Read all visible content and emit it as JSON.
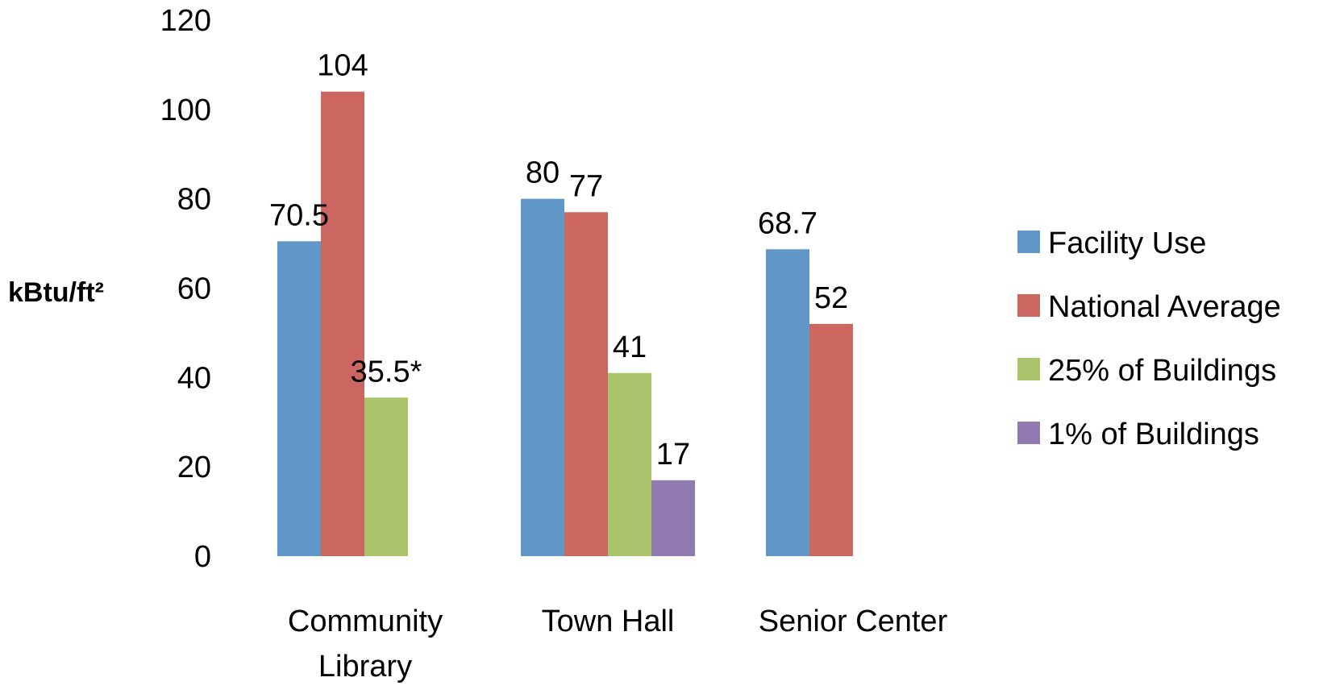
{
  "chart_data": {
    "type": "bar",
    "categories": [
      [
        "Community",
        "Library"
      ],
      [
        "Town Hall"
      ],
      [
        "Senior Center"
      ]
    ],
    "ylabel": "kBtu/ft²",
    "ylim": [
      0,
      120
    ],
    "yticks": [
      0,
      20,
      40,
      60,
      80,
      100,
      120
    ],
    "grid": false,
    "legend_position": "right",
    "series": [
      {
        "name": "Facility Use",
        "color": "#6096C8",
        "values": [
          70.5,
          80,
          68.7
        ],
        "labels": [
          "70.5",
          "80",
          "68.7"
        ]
      },
      {
        "name": "National Average",
        "color": "#CC6660",
        "values": [
          104,
          77,
          52
        ],
        "labels": [
          "104",
          "77",
          "52"
        ]
      },
      {
        "name": "25% of Buildings",
        "color": "#A9C46A",
        "values": [
          35.5,
          41,
          null
        ],
        "labels": [
          "35.5*",
          "41",
          ""
        ]
      },
      {
        "name": "1% of Buildings",
        "color": "#9179B2",
        "values": [
          null,
          17,
          null
        ],
        "labels": [
          "",
          "17",
          ""
        ]
      }
    ]
  }
}
